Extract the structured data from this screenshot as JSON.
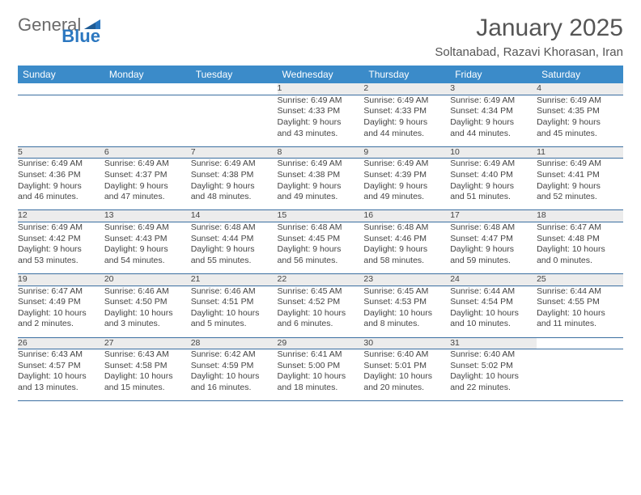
{
  "brand": {
    "part1": "General",
    "part2": "Blue"
  },
  "title": "January 2025",
  "location": "Soltanabad, Razavi Khorasan, Iran",
  "colors": {
    "header_bg": "#3b8bc9",
    "header_text": "#ffffff",
    "daynum_bg": "#ececec",
    "row_border": "#3b6fa1",
    "logo_gray": "#6a6a6a",
    "logo_blue": "#2b77c0"
  },
  "day_headers": [
    "Sunday",
    "Monday",
    "Tuesday",
    "Wednesday",
    "Thursday",
    "Friday",
    "Saturday"
  ],
  "weeks": [
    {
      "nums": [
        "",
        "",
        "",
        "1",
        "2",
        "3",
        "4"
      ],
      "cells": [
        null,
        null,
        null,
        {
          "sunrise": "Sunrise: 6:49 AM",
          "sunset": "Sunset: 4:33 PM",
          "day1": "Daylight: 9 hours",
          "day2": "and 43 minutes."
        },
        {
          "sunrise": "Sunrise: 6:49 AM",
          "sunset": "Sunset: 4:33 PM",
          "day1": "Daylight: 9 hours",
          "day2": "and 44 minutes."
        },
        {
          "sunrise": "Sunrise: 6:49 AM",
          "sunset": "Sunset: 4:34 PM",
          "day1": "Daylight: 9 hours",
          "day2": "and 44 minutes."
        },
        {
          "sunrise": "Sunrise: 6:49 AM",
          "sunset": "Sunset: 4:35 PM",
          "day1": "Daylight: 9 hours",
          "day2": "and 45 minutes."
        }
      ]
    },
    {
      "nums": [
        "5",
        "6",
        "7",
        "8",
        "9",
        "10",
        "11"
      ],
      "cells": [
        {
          "sunrise": "Sunrise: 6:49 AM",
          "sunset": "Sunset: 4:36 PM",
          "day1": "Daylight: 9 hours",
          "day2": "and 46 minutes."
        },
        {
          "sunrise": "Sunrise: 6:49 AM",
          "sunset": "Sunset: 4:37 PM",
          "day1": "Daylight: 9 hours",
          "day2": "and 47 minutes."
        },
        {
          "sunrise": "Sunrise: 6:49 AM",
          "sunset": "Sunset: 4:38 PM",
          "day1": "Daylight: 9 hours",
          "day2": "and 48 minutes."
        },
        {
          "sunrise": "Sunrise: 6:49 AM",
          "sunset": "Sunset: 4:38 PM",
          "day1": "Daylight: 9 hours",
          "day2": "and 49 minutes."
        },
        {
          "sunrise": "Sunrise: 6:49 AM",
          "sunset": "Sunset: 4:39 PM",
          "day1": "Daylight: 9 hours",
          "day2": "and 49 minutes."
        },
        {
          "sunrise": "Sunrise: 6:49 AM",
          "sunset": "Sunset: 4:40 PM",
          "day1": "Daylight: 9 hours",
          "day2": "and 51 minutes."
        },
        {
          "sunrise": "Sunrise: 6:49 AM",
          "sunset": "Sunset: 4:41 PM",
          "day1": "Daylight: 9 hours",
          "day2": "and 52 minutes."
        }
      ]
    },
    {
      "nums": [
        "12",
        "13",
        "14",
        "15",
        "16",
        "17",
        "18"
      ],
      "cells": [
        {
          "sunrise": "Sunrise: 6:49 AM",
          "sunset": "Sunset: 4:42 PM",
          "day1": "Daylight: 9 hours",
          "day2": "and 53 minutes."
        },
        {
          "sunrise": "Sunrise: 6:49 AM",
          "sunset": "Sunset: 4:43 PM",
          "day1": "Daylight: 9 hours",
          "day2": "and 54 minutes."
        },
        {
          "sunrise": "Sunrise: 6:48 AM",
          "sunset": "Sunset: 4:44 PM",
          "day1": "Daylight: 9 hours",
          "day2": "and 55 minutes."
        },
        {
          "sunrise": "Sunrise: 6:48 AM",
          "sunset": "Sunset: 4:45 PM",
          "day1": "Daylight: 9 hours",
          "day2": "and 56 minutes."
        },
        {
          "sunrise": "Sunrise: 6:48 AM",
          "sunset": "Sunset: 4:46 PM",
          "day1": "Daylight: 9 hours",
          "day2": "and 58 minutes."
        },
        {
          "sunrise": "Sunrise: 6:48 AM",
          "sunset": "Sunset: 4:47 PM",
          "day1": "Daylight: 9 hours",
          "day2": "and 59 minutes."
        },
        {
          "sunrise": "Sunrise: 6:47 AM",
          "sunset": "Sunset: 4:48 PM",
          "day1": "Daylight: 10 hours",
          "day2": "and 0 minutes."
        }
      ]
    },
    {
      "nums": [
        "19",
        "20",
        "21",
        "22",
        "23",
        "24",
        "25"
      ],
      "cells": [
        {
          "sunrise": "Sunrise: 6:47 AM",
          "sunset": "Sunset: 4:49 PM",
          "day1": "Daylight: 10 hours",
          "day2": "and 2 minutes."
        },
        {
          "sunrise": "Sunrise: 6:46 AM",
          "sunset": "Sunset: 4:50 PM",
          "day1": "Daylight: 10 hours",
          "day2": "and 3 minutes."
        },
        {
          "sunrise": "Sunrise: 6:46 AM",
          "sunset": "Sunset: 4:51 PM",
          "day1": "Daylight: 10 hours",
          "day2": "and 5 minutes."
        },
        {
          "sunrise": "Sunrise: 6:45 AM",
          "sunset": "Sunset: 4:52 PM",
          "day1": "Daylight: 10 hours",
          "day2": "and 6 minutes."
        },
        {
          "sunrise": "Sunrise: 6:45 AM",
          "sunset": "Sunset: 4:53 PM",
          "day1": "Daylight: 10 hours",
          "day2": "and 8 minutes."
        },
        {
          "sunrise": "Sunrise: 6:44 AM",
          "sunset": "Sunset: 4:54 PM",
          "day1": "Daylight: 10 hours",
          "day2": "and 10 minutes."
        },
        {
          "sunrise": "Sunrise: 6:44 AM",
          "sunset": "Sunset: 4:55 PM",
          "day1": "Daylight: 10 hours",
          "day2": "and 11 minutes."
        }
      ]
    },
    {
      "nums": [
        "26",
        "27",
        "28",
        "29",
        "30",
        "31",
        ""
      ],
      "cells": [
        {
          "sunrise": "Sunrise: 6:43 AM",
          "sunset": "Sunset: 4:57 PM",
          "day1": "Daylight: 10 hours",
          "day2": "and 13 minutes."
        },
        {
          "sunrise": "Sunrise: 6:43 AM",
          "sunset": "Sunset: 4:58 PM",
          "day1": "Daylight: 10 hours",
          "day2": "and 15 minutes."
        },
        {
          "sunrise": "Sunrise: 6:42 AM",
          "sunset": "Sunset: 4:59 PM",
          "day1": "Daylight: 10 hours",
          "day2": "and 16 minutes."
        },
        {
          "sunrise": "Sunrise: 6:41 AM",
          "sunset": "Sunset: 5:00 PM",
          "day1": "Daylight: 10 hours",
          "day2": "and 18 minutes."
        },
        {
          "sunrise": "Sunrise: 6:40 AM",
          "sunset": "Sunset: 5:01 PM",
          "day1": "Daylight: 10 hours",
          "day2": "and 20 minutes."
        },
        {
          "sunrise": "Sunrise: 6:40 AM",
          "sunset": "Sunset: 5:02 PM",
          "day1": "Daylight: 10 hours",
          "day2": "and 22 minutes."
        },
        null
      ]
    }
  ]
}
